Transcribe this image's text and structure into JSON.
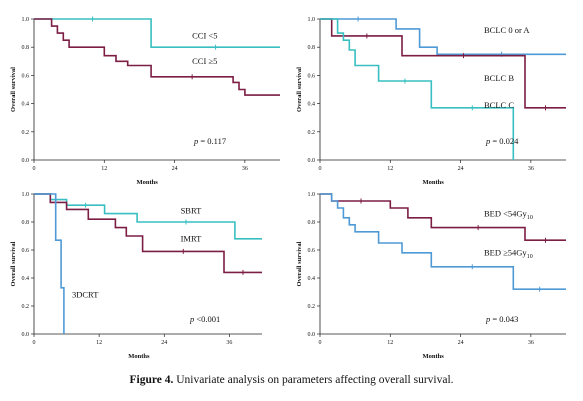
{
  "caption": {
    "label": "Figure 4.",
    "text": " Univariate analysis on parameters affecting overall survival."
  },
  "chart_data": [
    {
      "type": "line",
      "xlabel": "Months",
      "ylabel": "Overall survival",
      "xlim": [
        0,
        42
      ],
      "ylim": [
        0,
        1.0
      ],
      "xticks": [
        "0",
        "12",
        "24",
        "36"
      ],
      "yticks": [
        "0.0",
        "0.2",
        "0.4",
        "0.6",
        "0.8",
        "1.0"
      ],
      "pvalue": {
        "italic": "p",
        "rest": " = 0.117"
      },
      "series": [
        {
          "name": "CCI <5",
          "color": "#39bfc1",
          "x": [
            0,
            20,
            20,
            42
          ],
          "y": [
            1.0,
            1.0,
            0.8,
            0.8
          ]
        },
        {
          "name": "CCI ≥5",
          "color": "#7c1d44",
          "x": [
            0,
            3,
            3,
            4,
            4,
            5,
            5,
            6,
            6,
            12,
            12,
            14,
            14,
            16,
            16,
            20,
            20,
            34,
            34,
            35,
            35,
            36,
            36,
            42
          ],
          "y": [
            1.0,
            1.0,
            0.95,
            0.95,
            0.9,
            0.9,
            0.85,
            0.85,
            0.8,
            0.8,
            0.74,
            0.74,
            0.7,
            0.7,
            0.67,
            0.67,
            0.59,
            0.59,
            0.55,
            0.55,
            0.5,
            0.5,
            0.46,
            0.46
          ]
        }
      ],
      "annotations": [
        {
          "text": "CCI <5",
          "x": 27,
          "y": 0.86
        },
        {
          "text": "CCI ≥5",
          "x": 27,
          "y": 0.68
        }
      ]
    },
    {
      "type": "line",
      "xlabel": "Months",
      "ylabel": "Overall survival",
      "xlim": [
        0,
        42
      ],
      "ylim": [
        0,
        1.0
      ],
      "xticks": [
        "0",
        "12",
        "24",
        "36"
      ],
      "yticks": [
        "0.0",
        "0.2",
        "0.4",
        "0.6",
        "0.8",
        "1.0"
      ],
      "pvalue": {
        "italic": "p",
        "rest": " = 0.024"
      },
      "series": [
        {
          "name": "BCLC 0 or A",
          "color": "#4e9ad6",
          "x": [
            0,
            13,
            13,
            17,
            17,
            20,
            20,
            42
          ],
          "y": [
            1.0,
            1.0,
            0.93,
            0.93,
            0.8,
            0.8,
            0.75,
            0.75
          ]
        },
        {
          "name": "BCLC B",
          "color": "#7c1d44",
          "x": [
            0,
            2,
            2,
            14,
            14,
            35,
            35,
            42
          ],
          "y": [
            1.0,
            1.0,
            0.88,
            0.88,
            0.74,
            0.74,
            0.37,
            0.37
          ]
        },
        {
          "name": "BCLC C",
          "color": "#39bfc1",
          "x": [
            0,
            3,
            3,
            4,
            4,
            5,
            5,
            6,
            6,
            10,
            10,
            19,
            19,
            33,
            33
          ],
          "y": [
            1.0,
            1.0,
            0.9,
            0.9,
            0.85,
            0.85,
            0.78,
            0.78,
            0.67,
            0.67,
            0.56,
            0.56,
            0.37,
            0.37,
            0.0
          ]
        }
      ],
      "annotations": [
        {
          "text": "BCLC 0 or A",
          "x": 28,
          "y": 0.9
        },
        {
          "text": "BCLC B",
          "x": 28,
          "y": 0.56
        },
        {
          "text": "BCLC C",
          "x": 28,
          "y": 0.37
        }
      ]
    },
    {
      "type": "line",
      "xlabel": "Months",
      "ylabel": "Overall survival",
      "xlim": [
        0,
        42
      ],
      "ylim": [
        0,
        1.0
      ],
      "xticks": [
        "0",
        "12",
        "24",
        "36"
      ],
      "yticks": [
        "0.0",
        "0.2",
        "0.4",
        "0.6",
        "0.8",
        "1.0"
      ],
      "pvalue": {
        "italic": "p",
        "rest": " <0.001"
      },
      "series": [
        {
          "name": "SBRT",
          "color": "#39bfc1",
          "x": [
            0,
            3,
            3,
            6,
            6,
            13,
            13,
            19,
            19,
            37,
            37,
            42
          ],
          "y": [
            1.0,
            1.0,
            0.96,
            0.96,
            0.92,
            0.92,
            0.86,
            0.86,
            0.8,
            0.8,
            0.68,
            0.68
          ]
        },
        {
          "name": "IMRT",
          "color": "#7c1d44",
          "x": [
            0,
            3,
            3,
            6,
            6,
            10,
            10,
            15,
            15,
            17,
            17,
            20,
            20,
            35,
            35,
            42
          ],
          "y": [
            1.0,
            1.0,
            0.94,
            0.94,
            0.89,
            0.89,
            0.82,
            0.82,
            0.76,
            0.76,
            0.7,
            0.7,
            0.59,
            0.59,
            0.44,
            0.44
          ]
        },
        {
          "name": "3DCRT",
          "color": "#4e9ad6",
          "x": [
            0,
            4,
            4,
            5,
            5,
            5.5,
            5.5
          ],
          "y": [
            1.0,
            1.0,
            0.67,
            0.67,
            0.33,
            0.33,
            0.0
          ]
        }
      ],
      "annotations": [
        {
          "text": "SBRT",
          "x": 27,
          "y": 0.86
        },
        {
          "text": "IMRT",
          "x": 27,
          "y": 0.66
        },
        {
          "text": "3DCRT",
          "x": 7,
          "y": 0.26
        }
      ]
    },
    {
      "type": "line",
      "xlabel": "Months",
      "ylabel": "Overall survival",
      "xlim": [
        0,
        42
      ],
      "ylim": [
        0,
        1.0
      ],
      "xticks": [
        "0",
        "12",
        "24",
        "36"
      ],
      "yticks": [
        "0.0",
        "0.2",
        "0.4",
        "0.6",
        "0.8",
        "1.0"
      ],
      "pvalue": {
        "italic": "p",
        "rest": " = 0.043"
      },
      "series": [
        {
          "name": "BED <54Gy10",
          "color": "#7c1d44",
          "x": [
            0,
            2,
            2,
            12,
            12,
            15,
            15,
            19,
            19,
            35,
            35,
            42
          ],
          "y": [
            1.0,
            1.0,
            0.95,
            0.95,
            0.9,
            0.9,
            0.83,
            0.83,
            0.76,
            0.76,
            0.67,
            0.67
          ]
        },
        {
          "name": "BED ≥54Gy10",
          "color": "#4e9ad6",
          "x": [
            0,
            2,
            2,
            3,
            3,
            4,
            4,
            5,
            5,
            6,
            6,
            10,
            10,
            14,
            14,
            19,
            19,
            33,
            33,
            42
          ],
          "y": [
            1.0,
            1.0,
            0.95,
            0.95,
            0.9,
            0.9,
            0.83,
            0.83,
            0.78,
            0.78,
            0.73,
            0.73,
            0.65,
            0.65,
            0.58,
            0.58,
            0.48,
            0.48,
            0.32,
            0.32
          ]
        }
      ],
      "annotations": [
        {
          "text": "BED <54Gy",
          "sub": "10",
          "x": 28,
          "y": 0.84
        },
        {
          "text": "BED ≥54Gy",
          "sub": "10",
          "x": 28,
          "y": 0.56
        }
      ]
    }
  ]
}
